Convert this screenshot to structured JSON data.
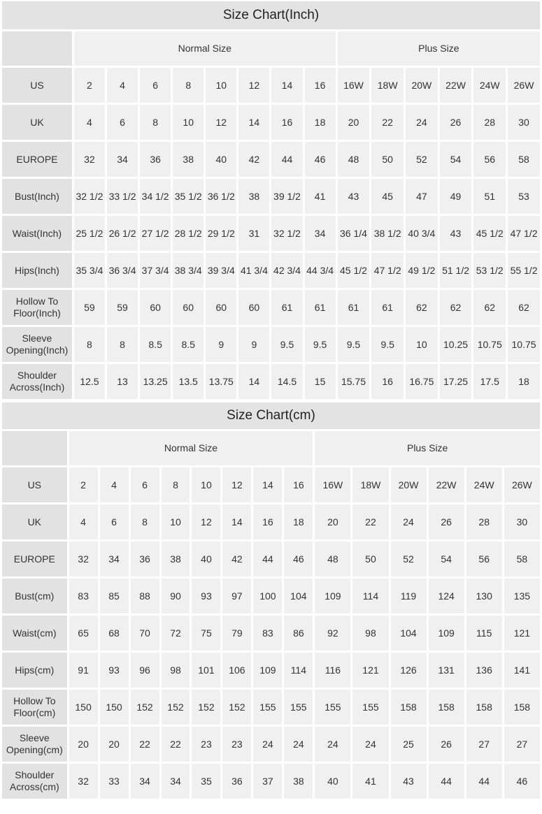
{
  "inch_chart": {
    "title": "Size Chart(Inch)",
    "groups": [
      "Normal Size",
      "Plus Size"
    ],
    "rows": [
      {
        "label": "US",
        "values": [
          "2",
          "4",
          "6",
          "8",
          "10",
          "12",
          "14",
          "16",
          "16W",
          "18W",
          "20W",
          "22W",
          "24W",
          "26W"
        ]
      },
      {
        "label": "UK",
        "values": [
          "4",
          "6",
          "8",
          "10",
          "12",
          "14",
          "16",
          "18",
          "20",
          "22",
          "24",
          "26",
          "28",
          "30"
        ]
      },
      {
        "label": "EUROPE",
        "values": [
          "32",
          "34",
          "36",
          "38",
          "40",
          "42",
          "44",
          "46",
          "48",
          "50",
          "52",
          "54",
          "56",
          "58"
        ]
      },
      {
        "label": "Bust(Inch)",
        "values": [
          "32 1/2",
          "33 1/2",
          "34 1/2",
          "35 1/2",
          "36 1/2",
          "38",
          "39 1/2",
          "41",
          "43",
          "45",
          "47",
          "49",
          "51",
          "53"
        ]
      },
      {
        "label": "Waist(Inch)",
        "values": [
          "25 1/2",
          "26 1/2",
          "27 1/2",
          "28 1/2",
          "29 1/2",
          "31",
          "32 1/2",
          "34",
          "36 1/4",
          "38 1/2",
          "40 3/4",
          "43",
          "45 1/2",
          "47 1/2"
        ]
      },
      {
        "label": "Hips(Inch)",
        "values": [
          "35 3/4",
          "36 3/4",
          "37 3/4",
          "38 3/4",
          "39 3/4",
          "41 3/4",
          "42 3/4",
          "44 3/4",
          "45 1/2",
          "47 1/2",
          "49 1/2",
          "51 1/2",
          "53 1/2",
          "55 1/2"
        ]
      },
      {
        "label": "Hollow To Floor(Inch)",
        "values": [
          "59",
          "59",
          "60",
          "60",
          "60",
          "60",
          "61",
          "61",
          "61",
          "61",
          "62",
          "62",
          "62",
          "62"
        ]
      },
      {
        "label": "Sleeve Opening(Inch)",
        "values": [
          "8",
          "8",
          "8.5",
          "8.5",
          "9",
          "9",
          "9.5",
          "9.5",
          "9.5",
          "9.5",
          "10",
          "10.25",
          "10.75",
          "10.75"
        ]
      },
      {
        "label": "Shoulder Across(Inch)",
        "values": [
          "12.5",
          "13",
          "13.25",
          "13.5",
          "13.75",
          "14",
          "14.5",
          "15",
          "15.75",
          "16",
          "16.75",
          "17.25",
          "17.5",
          "18"
        ]
      }
    ]
  },
  "cm_chart": {
    "title": "Size Chart(cm)",
    "groups": [
      "Normal Size",
      "Plus Size"
    ],
    "rows": [
      {
        "label": "US",
        "values": [
          "2",
          "4",
          "6",
          "8",
          "10",
          "12",
          "14",
          "16",
          "16W",
          "18W",
          "20W",
          "22W",
          "24W",
          "26W"
        ]
      },
      {
        "label": "UK",
        "values": [
          "4",
          "6",
          "8",
          "10",
          "12",
          "14",
          "16",
          "18",
          "20",
          "22",
          "24",
          "26",
          "28",
          "30"
        ]
      },
      {
        "label": "EUROPE",
        "values": [
          "32",
          "34",
          "36",
          "38",
          "40",
          "42",
          "44",
          "46",
          "48",
          "50",
          "52",
          "54",
          "56",
          "58"
        ]
      },
      {
        "label": "Bust(cm)",
        "values": [
          "83",
          "85",
          "88",
          "90",
          "93",
          "97",
          "100",
          "104",
          "109",
          "114",
          "119",
          "124",
          "130",
          "135"
        ]
      },
      {
        "label": "Waist(cm)",
        "values": [
          "65",
          "68",
          "70",
          "72",
          "75",
          "79",
          "83",
          "86",
          "92",
          "98",
          "104",
          "109",
          "115",
          "121"
        ]
      },
      {
        "label": "Hips(cm)",
        "values": [
          "91",
          "93",
          "96",
          "98",
          "101",
          "106",
          "109",
          "114",
          "116",
          "121",
          "126",
          "131",
          "136",
          "141"
        ]
      },
      {
        "label": "Hollow To Floor(cm)",
        "values": [
          "150",
          "150",
          "152",
          "152",
          "152",
          "152",
          "155",
          "155",
          "155",
          "155",
          "158",
          "158",
          "158",
          "158"
        ]
      },
      {
        "label": "Sleeve Opening(cm)",
        "values": [
          "20",
          "20",
          "22",
          "22",
          "23",
          "23",
          "24",
          "24",
          "24",
          "24",
          "25",
          "26",
          "27",
          "27"
        ]
      },
      {
        "label": "Shoulder Across(cm)",
        "values": [
          "32",
          "33",
          "34",
          "34",
          "35",
          "36",
          "37",
          "38",
          "40",
          "41",
          "43",
          "44",
          "44",
          "46"
        ]
      }
    ]
  },
  "colors": {
    "title_bg": "#e3e3e3",
    "label_bg": "#e2e2e2",
    "cell_bg": "#f0f0f0"
  }
}
